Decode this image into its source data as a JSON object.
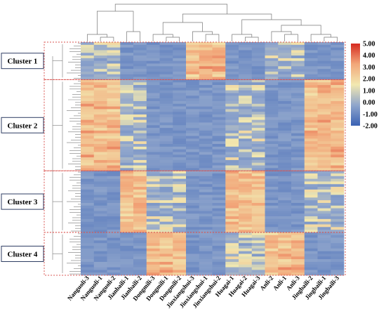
{
  "chart_data": {
    "type": "heatmap",
    "title": "",
    "xlabel": "",
    "ylabel": "",
    "columns": [
      "Nanguoli-3",
      "Nanguoli-1",
      "Nanguoli-2",
      "Jianbaili-1",
      "Jianbaili-2",
      "Dongmili-3",
      "Dongmili-1",
      "Dongmili-2",
      "Jinxiangshui-3",
      "Jinxiangshui-1",
      "Jinxiangshui-2",
      "Huagai-1",
      "Huagai-2",
      "Huagai-3",
      "Anli-2",
      "Anli-1",
      "Anli-3",
      "Jingbaili-2",
      "Jingbaili-1",
      "Jingbaili-3"
    ],
    "column_groups": [
      {
        "name": "Nanguoli",
        "columns": [
          0,
          1,
          2
        ]
      },
      {
        "name": "Jianbaili",
        "columns": [
          3,
          4
        ]
      },
      {
        "name": "Dongmili",
        "columns": [
          5,
          6,
          7
        ]
      },
      {
        "name": "Jinxiangshui",
        "columns": [
          8,
          9,
          10
        ]
      },
      {
        "name": "Huagai",
        "columns": [
          11,
          12,
          13
        ]
      },
      {
        "name": "Anli",
        "columns": [
          14,
          15,
          16
        ]
      },
      {
        "name": "Jingbaili",
        "columns": [
          17,
          18,
          19
        ]
      }
    ],
    "colorbar": {
      "min": -2.0,
      "max": 5.0,
      "ticks": [
        "5.00",
        "4.00",
        "3.00",
        "2.00",
        "1.00",
        "0.00",
        "-1.00",
        "-2.00"
      ],
      "colors": [
        "#3a62b4",
        "#8fa5cc",
        "#f2e8b0",
        "#f2a77a",
        "#d62a20"
      ]
    },
    "clusters": [
      {
        "label": "Cluster 1",
        "rows": 14,
        "high_groups": [
          "Jinxiangshui"
        ],
        "mid_groups": [
          "Nanguoli",
          "Anli"
        ]
      },
      {
        "label": "Cluster 2",
        "rows": 34,
        "high_groups": [
          "Nanguoli",
          "Jingbaili"
        ],
        "mid_groups": [
          "Jianbaili",
          "Huagai"
        ]
      },
      {
        "label": "Cluster 3",
        "rows": 23,
        "high_groups": [
          "Jianbaili",
          "Huagai"
        ],
        "mid_groups": [
          "Dongmili",
          "Jingbaili"
        ]
      },
      {
        "label": "Cluster 4",
        "rows": 16,
        "high_groups": [
          "Dongmili",
          "Anli"
        ],
        "mid_groups": [
          "Huagai"
        ]
      }
    ]
  }
}
